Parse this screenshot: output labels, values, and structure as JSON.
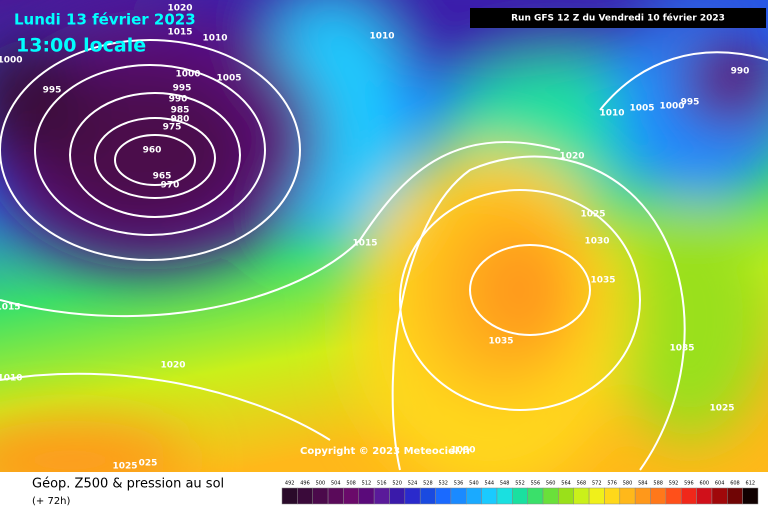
{
  "header": {
    "date": "Lundi 13 février 2023",
    "time": "13:00 locale",
    "run": "Run GFS 12 Z du Vendredi 10 février 2023"
  },
  "copyright": "Copyright © 2023 Meteociel.fr",
  "footer": {
    "title": "Géop. Z500 & pression au sol",
    "lead": "(+ 72h)"
  },
  "isobar_labels": [
    1020,
    1015,
    1010,
    1010,
    1000,
    1000,
    1005,
    995,
    990,
    985,
    980,
    975,
    960,
    965,
    970,
    995,
    1010,
    1005,
    1000,
    995,
    990,
    1020,
    1025,
    1030,
    1035,
    1035,
    1035,
    1015,
    1015,
    1010,
    1020,
    1025,
    1025,
    "025",
    1030
  ],
  "colorbar": {
    "labels": [
      492,
      496,
      500,
      504,
      508,
      512,
      516,
      520,
      524,
      528,
      532,
      536,
      540,
      544,
      548,
      552,
      556,
      560,
      564,
      568,
      572,
      576,
      580,
      584,
      588,
      592,
      596,
      600,
      604,
      608,
      612
    ],
    "colors": [
      "#2a0a2a",
      "#3a0a3a",
      "#4b0a4b",
      "#5a0a5a",
      "#6a0a6a",
      "#5a0a7a",
      "#5a1a9a",
      "#3a1aaa",
      "#2a2acc",
      "#1a4ae0",
      "#1a6aff",
      "#1a8aff",
      "#1aaaff",
      "#1acaff",
      "#1ae0e0",
      "#1ae0a0",
      "#3ae06a",
      "#6ae03a",
      "#9ae01a",
      "#caf01a",
      "#f0f01a",
      "#ffd81a",
      "#ffb81a",
      "#ff981a",
      "#ff781a",
      "#ff501a",
      "#f0281a",
      "#d0101a",
      "#a0080a",
      "#700505",
      "#100000"
    ]
  }
}
